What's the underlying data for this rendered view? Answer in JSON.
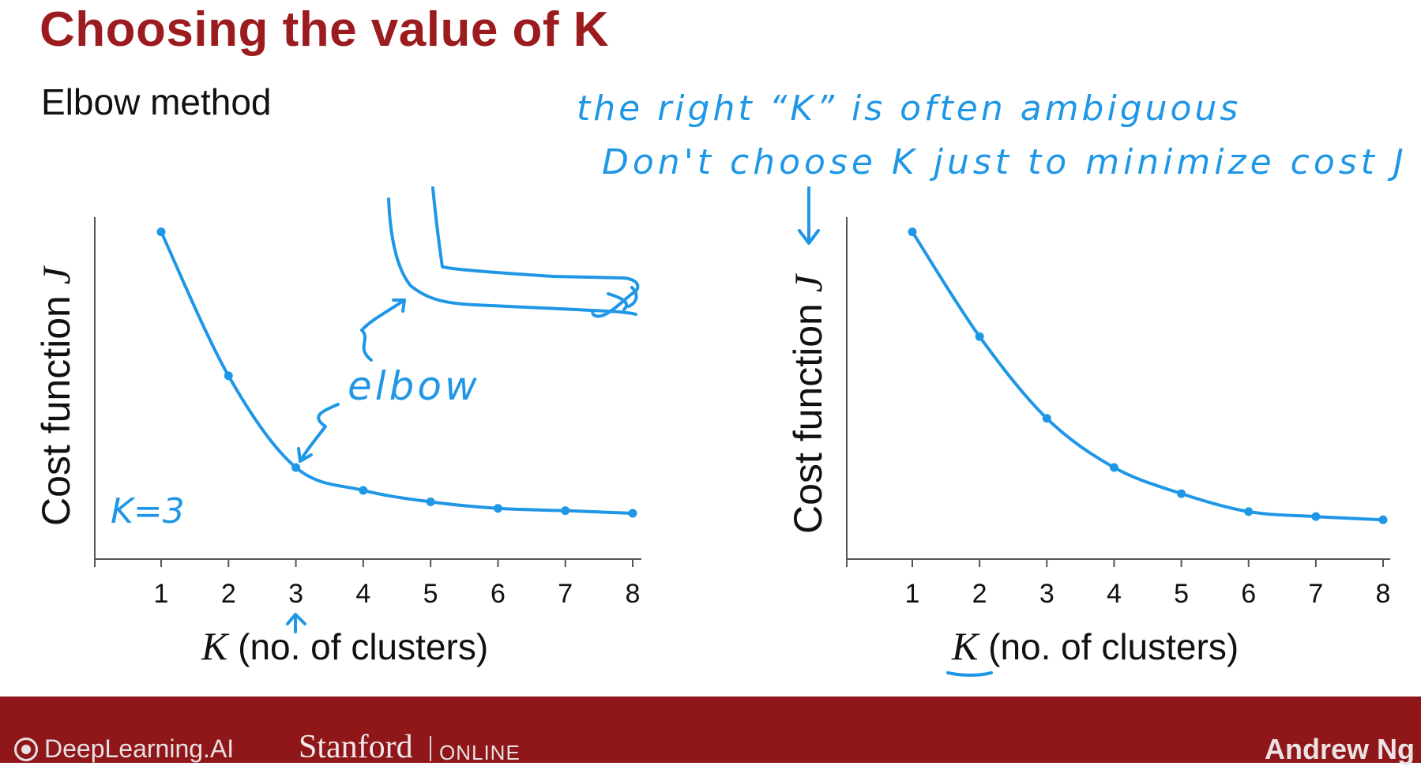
{
  "slide": {
    "title": "Choosing the value of K",
    "subtitle": "Elbow method"
  },
  "annotations": {
    "note_line_1": "the right “K” is often ambiguous",
    "note_line_2": "Don't choose K just to minimize cost J",
    "elbow_label": "elbow",
    "k_choice_label": "K=3"
  },
  "chart_data": [
    {
      "type": "line",
      "x": [
        1,
        2,
        3,
        4,
        5,
        6,
        7,
        8
      ],
      "y": [
        100,
        56,
        28,
        21,
        17.5,
        15.5,
        14.8,
        14
      ],
      "title": "",
      "xlabel_var": "K",
      "xlabel": "(no. of clusters)",
      "ylabel": "Cost function",
      "ylabel_var": "J",
      "ylim": [
        0,
        104
      ],
      "grid": false
    },
    {
      "type": "line",
      "x": [
        1,
        2,
        3,
        4,
        5,
        6,
        7,
        8
      ],
      "y": [
        100,
        68,
        43,
        28,
        20,
        14.5,
        13,
        12
      ],
      "title": "",
      "xlabel_var": "K",
      "xlabel": "(no. of clusters)",
      "ylabel": "Cost function",
      "ylabel_var": "J",
      "ylim": [
        0,
        104
      ],
      "grid": false
    }
  ],
  "colors": {
    "title": "#9b1b1f",
    "annotation_ink": "#1f97e6",
    "footer": "#8f1619"
  },
  "footer": {
    "brand": "DeepLearning.AI",
    "university": "Stanford",
    "online": "ONLINE",
    "author": "Andrew Ng"
  }
}
